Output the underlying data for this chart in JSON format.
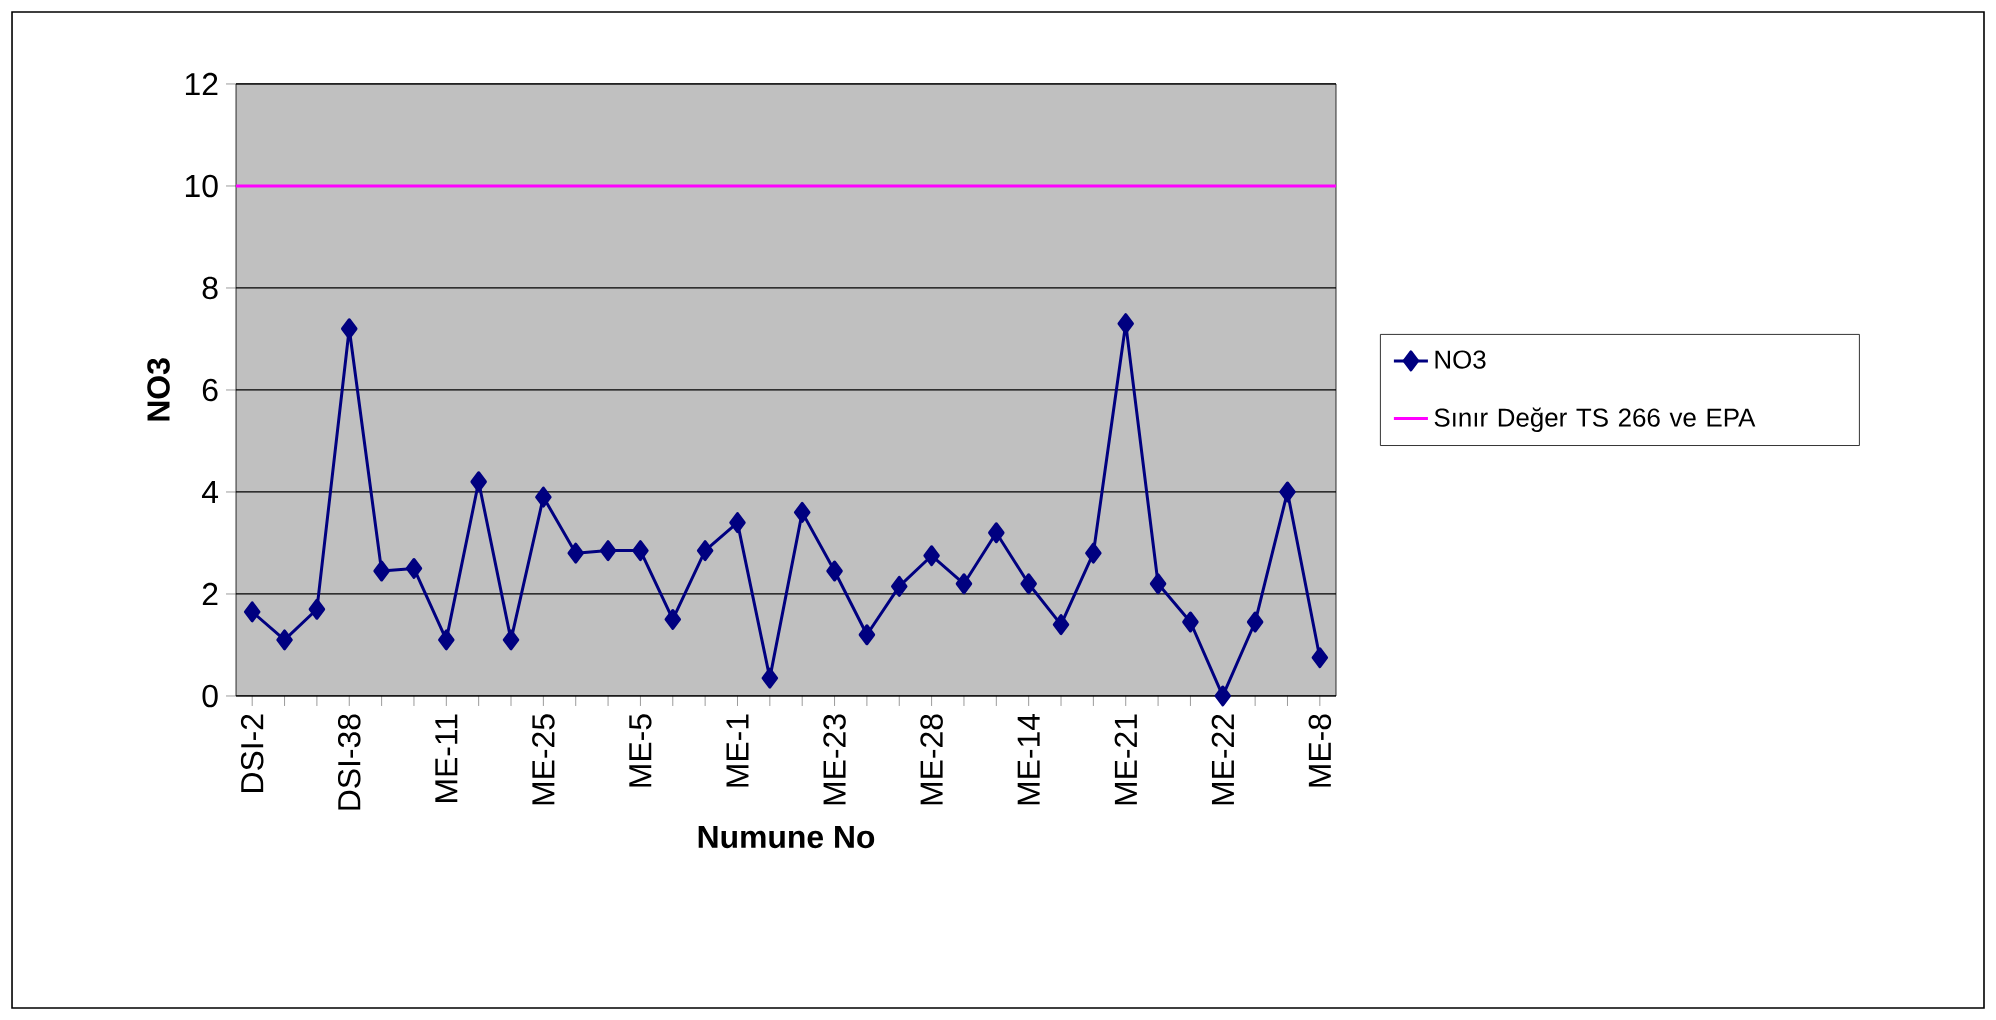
{
  "chart_data": {
    "type": "line",
    "xlabel": "Numune No",
    "ylabel": "NO3",
    "categories": [
      "DSI-2",
      null,
      null,
      "DSI-38",
      null,
      null,
      "ME-11",
      null,
      null,
      "ME-25",
      null,
      null,
      "ME-5",
      null,
      null,
      "ME-1",
      null,
      null,
      "ME-23",
      null,
      null,
      "ME-28",
      null,
      null,
      "ME-14",
      null,
      null,
      "ME-21",
      null,
      null,
      "ME-22",
      null,
      null,
      "ME-8"
    ],
    "series": [
      {
        "name": "NO3",
        "color": "#000080",
        "values": [
          1.65,
          1.1,
          1.7,
          7.2,
          2.45,
          2.5,
          1.1,
          4.2,
          1.1,
          3.9,
          2.8,
          2.85,
          2.85,
          1.5,
          2.85,
          3.4,
          0.35,
          3.6,
          2.45,
          1.2,
          2.15,
          2.75,
          2.2,
          3.2,
          2.2,
          1.4,
          2.8,
          7.3,
          2.2,
          1.45,
          0,
          1.45,
          4.0,
          0.75
        ]
      }
    ],
    "ref_lines": [
      {
        "axis": "y",
        "value": 10,
        "label": "Sınır Değer TS 266 ve EPA",
        "color": "#ff00ff"
      }
    ],
    "ylim": [
      0,
      12
    ],
    "yticks": [
      0,
      2,
      4,
      6,
      8,
      10,
      12
    ],
    "grid": "y",
    "legend": "right",
    "marker": "diamond"
  }
}
